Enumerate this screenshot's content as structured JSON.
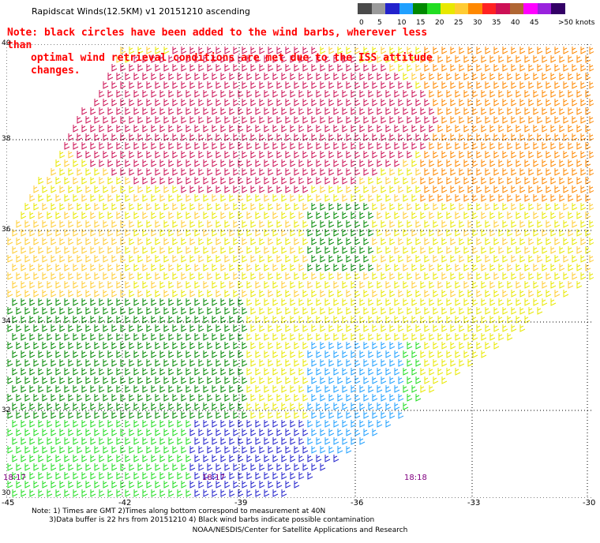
{
  "title": "Rapidscat Winds(12.5KM) v1 20151210 ascending",
  "note_line1": "Note: black circles have been added to the wind barbs, wherever less than",
  "note_line2": "optimal wind retrieval conditions are met due to the ISS attitude changes.",
  "legend": {
    "colors": [
      "#4a4a4a",
      "#9a9a9a",
      "#2222cc",
      "#20a0ff",
      "#008800",
      "#22dd22",
      "#e8e800",
      "#ffcc33",
      "#ff8800",
      "#ff2222",
      "#cc1155",
      "#b06633",
      "#ff00ff",
      "#9922dd",
      "#330066"
    ],
    "labels": [
      "0",
      "5",
      "10",
      "15",
      "20",
      "25",
      "30",
      "35",
      "40",
      "45",
      ">50 knots"
    ]
  },
  "latitudes": [
    "40",
    "38",
    "36",
    "34",
    "32",
    "30"
  ],
  "longitudes": [
    "-45",
    "-42",
    "-39",
    "-36",
    "-33",
    "-30"
  ],
  "time_labels": [
    "18:17",
    "18:17",
    "18:18"
  ],
  "footer": {
    "line1": "Note: 1) Times are GMT 2)Times along bottom correspond to measurement at 40N",
    "line2": "3)Data buffer is 22 hrs from 20151210 4) Black wind barbs indicate possible contamination",
    "credit": "NOAA/NESDIS/Center for Satellite Applications and Research"
  }
}
